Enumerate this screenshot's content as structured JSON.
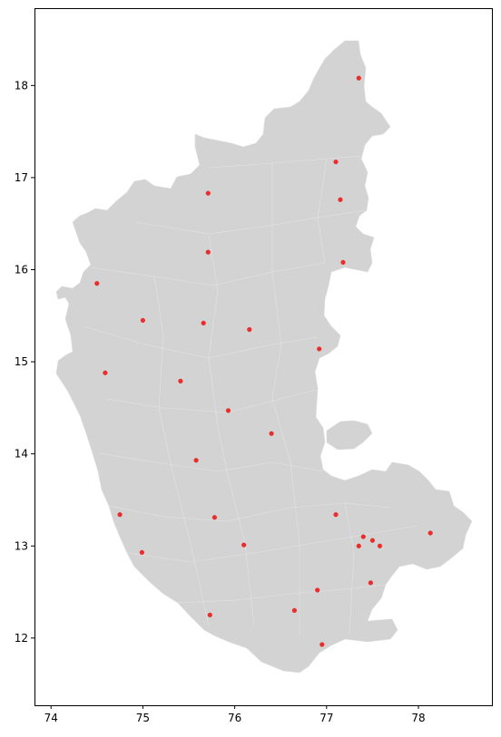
{
  "chart_data": {
    "type": "scatter",
    "title": "",
    "xlabel": "",
    "ylabel": "",
    "xlim": [
      73.82,
      78.8
    ],
    "ylim": [
      11.27,
      18.84
    ],
    "x_ticks": [
      "74",
      "75",
      "76",
      "77",
      "78"
    ],
    "y_ticks": [
      "12",
      "13",
      "14",
      "15",
      "16",
      "17",
      "18"
    ],
    "grid": false,
    "colors": {
      "region_fill": "#d3d3d3",
      "points": "#ef2b2b"
    },
    "points": [
      {
        "x": 77.35,
        "y": 18.08
      },
      {
        "x": 77.1,
        "y": 17.17
      },
      {
        "x": 75.71,
        "y": 16.83
      },
      {
        "x": 77.15,
        "y": 16.76
      },
      {
        "x": 75.71,
        "y": 16.19
      },
      {
        "x": 77.18,
        "y": 16.08
      },
      {
        "x": 74.5,
        "y": 15.85
      },
      {
        "x": 75.0,
        "y": 15.45
      },
      {
        "x": 75.66,
        "y": 15.42
      },
      {
        "x": 76.16,
        "y": 15.35
      },
      {
        "x": 76.92,
        "y": 15.14
      },
      {
        "x": 74.59,
        "y": 14.88
      },
      {
        "x": 75.41,
        "y": 14.79
      },
      {
        "x": 75.93,
        "y": 14.47
      },
      {
        "x": 76.4,
        "y": 14.22
      },
      {
        "x": 75.58,
        "y": 13.93
      },
      {
        "x": 74.75,
        "y": 13.34
      },
      {
        "x": 77.1,
        "y": 13.34
      },
      {
        "x": 75.78,
        "y": 13.31
      },
      {
        "x": 78.13,
        "y": 13.14
      },
      {
        "x": 77.4,
        "y": 13.1
      },
      {
        "x": 77.5,
        "y": 13.06
      },
      {
        "x": 76.1,
        "y": 13.01
      },
      {
        "x": 77.35,
        "y": 13.0
      },
      {
        "x": 77.58,
        "y": 13.0
      },
      {
        "x": 74.99,
        "y": 12.93
      },
      {
        "x": 77.48,
        "y": 12.6
      },
      {
        "x": 76.9,
        "y": 12.52
      },
      {
        "x": 76.65,
        "y": 12.3
      },
      {
        "x": 75.73,
        "y": 12.25
      },
      {
        "x": 76.95,
        "y": 11.93
      }
    ]
  }
}
